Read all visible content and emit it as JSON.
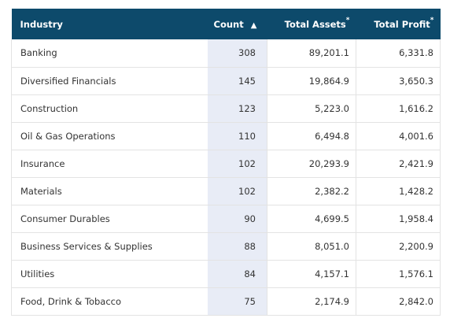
{
  "header": {
    "industry": "Industry",
    "count": "Count",
    "sort_indicator": "▲",
    "total_assets": "Total Assets",
    "total_profit": "Total Profit",
    "footnote_marker": "*"
  },
  "rows": [
    {
      "industry": "Banking",
      "count": "308",
      "total_assets": "89,201.1",
      "total_profit": "6,331.8"
    },
    {
      "industry": "Diversified Financials",
      "count": "145",
      "total_assets": "19,864.9",
      "total_profit": "3,650.3"
    },
    {
      "industry": "Construction",
      "count": "123",
      "total_assets": "5,223.0",
      "total_profit": "1,616.2"
    },
    {
      "industry": "Oil & Gas Operations",
      "count": "110",
      "total_assets": "6,494.8",
      "total_profit": "4,001.6"
    },
    {
      "industry": "Insurance",
      "count": "102",
      "total_assets": "20,293.9",
      "total_profit": "2,421.9"
    },
    {
      "industry": "Materials",
      "count": "102",
      "total_assets": "2,382.2",
      "total_profit": "1,428.2"
    },
    {
      "industry": "Consumer Durables",
      "count": "90",
      "total_assets": "4,699.5",
      "total_profit": "1,958.4"
    },
    {
      "industry": "Business Services & Supplies",
      "count": "88",
      "total_assets": "8,051.0",
      "total_profit": "2,200.9"
    },
    {
      "industry": "Utilities",
      "count": "84",
      "total_assets": "4,157.1",
      "total_profit": "1,576.1"
    },
    {
      "industry": "Food, Drink & Tobacco",
      "count": "75",
      "total_assets": "2,174.9",
      "total_profit": "2,842.0"
    }
  ],
  "colors": {
    "header_bg": "#0d4a6b",
    "header_text": "#ffffff",
    "sorted_column_bg": "#e8ecf6",
    "row_border": "#e3e3e3"
  }
}
